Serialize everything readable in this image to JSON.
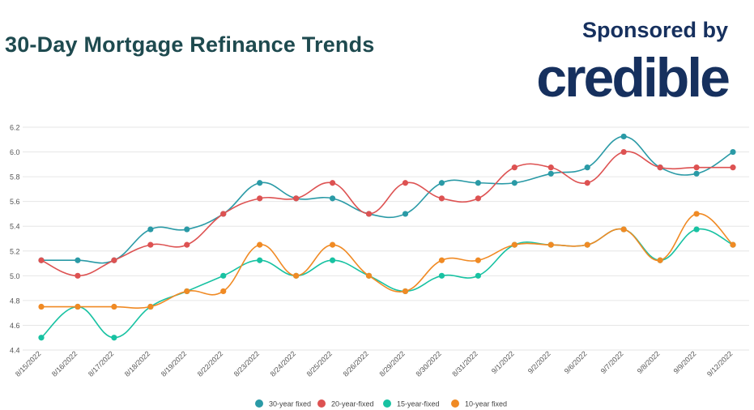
{
  "header": {
    "title": "30-Day Mortgage Refinance Trends",
    "sponsor_label": "Sponsored by",
    "brand": "credible"
  },
  "colors": {
    "title": "#1e4a4f",
    "brand": "#16305e",
    "grid": "#e6e6e6",
    "axis_text": "#555555"
  },
  "chart_data": {
    "type": "line",
    "title": "30-Day Mortgage Refinance Trends",
    "xlabel": "",
    "ylabel": "",
    "ylim": [
      4.4,
      6.2
    ],
    "yticks": [
      "4.4",
      "4.6",
      "4.8",
      "5.0",
      "5.2",
      "5.4",
      "5.6",
      "5.8",
      "6.0",
      "6.2"
    ],
    "grid": true,
    "legend_position": "bottom",
    "categories": [
      "8/15/2022",
      "8/16/2022",
      "8/17/2022",
      "8/18/2022",
      "8/19/2022",
      "8/22/2022",
      "8/23/2022",
      "8/24/2022",
      "8/25/2022",
      "8/26/2022",
      "8/29/2022",
      "8/30/2022",
      "8/31/2022",
      "9/1/2022",
      "9/2/2022",
      "9/6/2022",
      "9/7/2022",
      "9/8/2022",
      "9/9/2022",
      "9/12/2022"
    ],
    "series": [
      {
        "name": "30-year fixed",
        "color": "#2a9aa6",
        "values": [
          5.125,
          5.125,
          5.125,
          5.375,
          5.375,
          5.5,
          5.75,
          5.625,
          5.625,
          5.5,
          5.5,
          5.75,
          5.75,
          5.75,
          5.825,
          5.875,
          6.125,
          5.875,
          5.825,
          6.0
        ]
      },
      {
        "name": "20-year-fixed",
        "color": "#dd5252",
        "values": [
          5.125,
          5.0,
          5.125,
          5.25,
          5.25,
          5.5,
          5.625,
          5.625,
          5.75,
          5.5,
          5.75,
          5.625,
          5.625,
          5.875,
          5.875,
          5.75,
          6.0,
          5.875,
          5.875,
          5.875
        ]
      },
      {
        "name": "15-year-fixed",
        "color": "#18c2a2",
        "values": [
          4.5,
          4.75,
          4.5,
          4.75,
          4.875,
          5.0,
          5.125,
          5.0,
          5.125,
          5.0,
          4.875,
          5.0,
          5.0,
          5.25,
          5.25,
          5.25,
          5.375,
          5.125,
          5.375,
          5.25
        ]
      },
      {
        "name": "10-year fixed",
        "color": "#f08a24",
        "values": [
          4.75,
          4.75,
          4.75,
          4.75,
          4.875,
          4.875,
          5.25,
          5.0,
          5.25,
          5.0,
          4.875,
          5.125,
          5.125,
          5.25,
          5.25,
          5.25,
          5.375,
          5.125,
          5.5,
          5.25
        ]
      }
    ]
  }
}
